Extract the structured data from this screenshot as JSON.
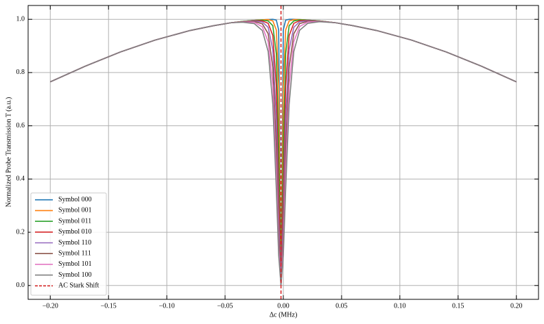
{
  "chart_data": {
    "type": "line",
    "xlabel": "Δc (MHz)",
    "ylabel": "Normalized Probe Transmission T (a.u.)",
    "x": [
      -0.2,
      -0.17,
      -0.14,
      -0.11,
      -0.08,
      -0.06,
      -0.045,
      -0.035,
      -0.025,
      -0.018,
      -0.013,
      -0.009,
      -0.006,
      -0.004,
      -0.002,
      0,
      0.002,
      0.005,
      0.009,
      0.014,
      0.021,
      0.031,
      0.045,
      0.06,
      0.08,
      0.11,
      0.14,
      0.17,
      0.2
    ],
    "series": [
      {
        "name": "Symbol 000",
        "color": "#1f77b4",
        "values": [
          0.765,
          0.824,
          0.877,
          0.922,
          0.958,
          0.976,
          0.987,
          0.992,
          0.996,
          0.998,
          0.999,
          1.0,
          0.997,
          0.96,
          0,
          0.96,
          0.997,
          1.0,
          1.0,
          0.999,
          0.997,
          0.994,
          0.987,
          0.976,
          0.958,
          0.922,
          0.877,
          0.824,
          0.765
        ]
      },
      {
        "name": "Symbol 001",
        "color": "#ff7f0e",
        "values": [
          0.765,
          0.824,
          0.877,
          0.922,
          0.958,
          0.976,
          0.987,
          0.992,
          0.996,
          0.998,
          0.999,
          0.994,
          0.96,
          0.75,
          0,
          0.75,
          0.96,
          0.994,
          0.999,
          0.999,
          0.997,
          0.994,
          0.987,
          0.976,
          0.958,
          0.922,
          0.877,
          0.824,
          0.765
        ]
      },
      {
        "name": "Symbol 011",
        "color": "#2ca02c",
        "values": [
          0.765,
          0.824,
          0.877,
          0.922,
          0.958,
          0.976,
          0.987,
          0.992,
          0.996,
          0.997,
          0.994,
          0.976,
          0.87,
          0.521,
          0,
          0.521,
          0.87,
          0.976,
          0.994,
          0.998,
          0.997,
          0.994,
          0.987,
          0.976,
          0.958,
          0.922,
          0.877,
          0.824,
          0.765
        ]
      },
      {
        "name": "Symbol 010",
        "color": "#d62728",
        "values": [
          0.765,
          0.824,
          0.877,
          0.922,
          0.958,
          0.976,
          0.987,
          0.991,
          0.995,
          0.994,
          0.985,
          0.939,
          0.75,
          0.36,
          0,
          0.36,
          0.75,
          0.939,
          0.985,
          0.995,
          0.996,
          0.993,
          0.987,
          0.976,
          0.958,
          0.922,
          0.877,
          0.824,
          0.765
        ]
      },
      {
        "name": "Symbol 110",
        "color": "#9467bd",
        "values": [
          0.765,
          0.824,
          0.877,
          0.922,
          0.958,
          0.976,
          0.987,
          0.991,
          0.994,
          0.99,
          0.97,
          0.886,
          0.628,
          0.257,
          0,
          0.257,
          0.628,
          0.886,
          0.97,
          0.991,
          0.995,
          0.993,
          0.987,
          0.976,
          0.958,
          0.922,
          0.877,
          0.824,
          0.765
        ]
      },
      {
        "name": "Symbol 111",
        "color": "#8c564b",
        "values": [
          0.765,
          0.824,
          0.877,
          0.922,
          0.958,
          0.976,
          0.987,
          0.991,
          0.992,
          0.983,
          0.946,
          0.82,
          0.521,
          0.19,
          0,
          0.19,
          0.521,
          0.82,
          0.946,
          0.984,
          0.993,
          0.993,
          0.987,
          0.976,
          0.958,
          0.922,
          0.877,
          0.824,
          0.765
        ]
      },
      {
        "name": "Symbol 101",
        "color": "#e377c2",
        "values": [
          0.765,
          0.824,
          0.877,
          0.922,
          0.958,
          0.976,
          0.987,
          0.99,
          0.989,
          0.972,
          0.916,
          0.75,
          0.432,
          0.145,
          0,
          0.145,
          0.432,
          0.75,
          0.916,
          0.973,
          0.99,
          0.992,
          0.987,
          0.976,
          0.958,
          0.922,
          0.877,
          0.824,
          0.765
        ]
      },
      {
        "name": "Symbol 100",
        "color": "#7f7f7f",
        "values": [
          0.765,
          0.824,
          0.877,
          0.922,
          0.958,
          0.976,
          0.987,
          0.989,
          0.984,
          0.958,
          0.879,
          0.68,
          0.36,
          0.114,
          0,
          0.114,
          0.36,
          0.68,
          0.879,
          0.959,
          0.985,
          0.991,
          0.987,
          0.976,
          0.958,
          0.922,
          0.877,
          0.824,
          0.765
        ]
      }
    ],
    "reference_line": {
      "name": "AC Stark Shift",
      "x": -0.002,
      "color": "#d62728"
    },
    "xlim": [
      -0.219,
      0.219
    ],
    "xticks": [
      {
        "value": -0.2,
        "label": "−0.20"
      },
      {
        "value": -0.15,
        "label": "−0.15"
      },
      {
        "value": -0.1,
        "label": "−0.10"
      },
      {
        "value": -0.05,
        "label": "−0.05"
      },
      {
        "value": 0,
        "label": "0.00"
      },
      {
        "value": 0.05,
        "label": "0.05"
      },
      {
        "value": 0.1,
        "label": "0.10"
      },
      {
        "value": 0.15,
        "label": "0.15"
      },
      {
        "value": 0.2,
        "label": "0.20"
      }
    ],
    "ylim": [
      -0.052,
      1.052
    ],
    "yticks": [
      {
        "value": 0,
        "label": "0.0"
      },
      {
        "value": 0.2,
        "label": "0.2"
      },
      {
        "value": 0.4,
        "label": "0.4"
      },
      {
        "value": 0.6,
        "label": "0.6"
      },
      {
        "value": 0.8,
        "label": "0.8"
      },
      {
        "value": 1,
        "label": "1.0"
      }
    ],
    "grid": true,
    "legend": "lower left"
  }
}
